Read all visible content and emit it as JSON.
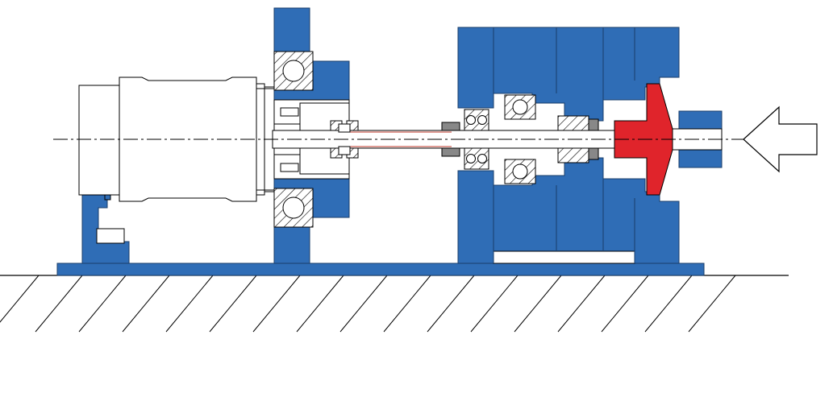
{
  "colors": {
    "background": "#ffffff",
    "housing": "#2f6db6",
    "housing_outline": "#1a3d6a",
    "impeller": "#e0242b",
    "line": "#000000",
    "shaft_line": "#c0392b",
    "hatch": "#000000"
  },
  "parts": [
    "ground",
    "base-plate",
    "motor",
    "motor-support-bracket",
    "bearing-housing-left",
    "ball-bearing-top",
    "ball-bearing-bottom",
    "shaft-coupling",
    "pump-casing",
    "ball-bearings-pump",
    "shaft-seal",
    "impeller",
    "inlet-nozzle",
    "flow-arrow"
  ],
  "icons": {
    "flow": "arrow-left-outline-icon"
  }
}
